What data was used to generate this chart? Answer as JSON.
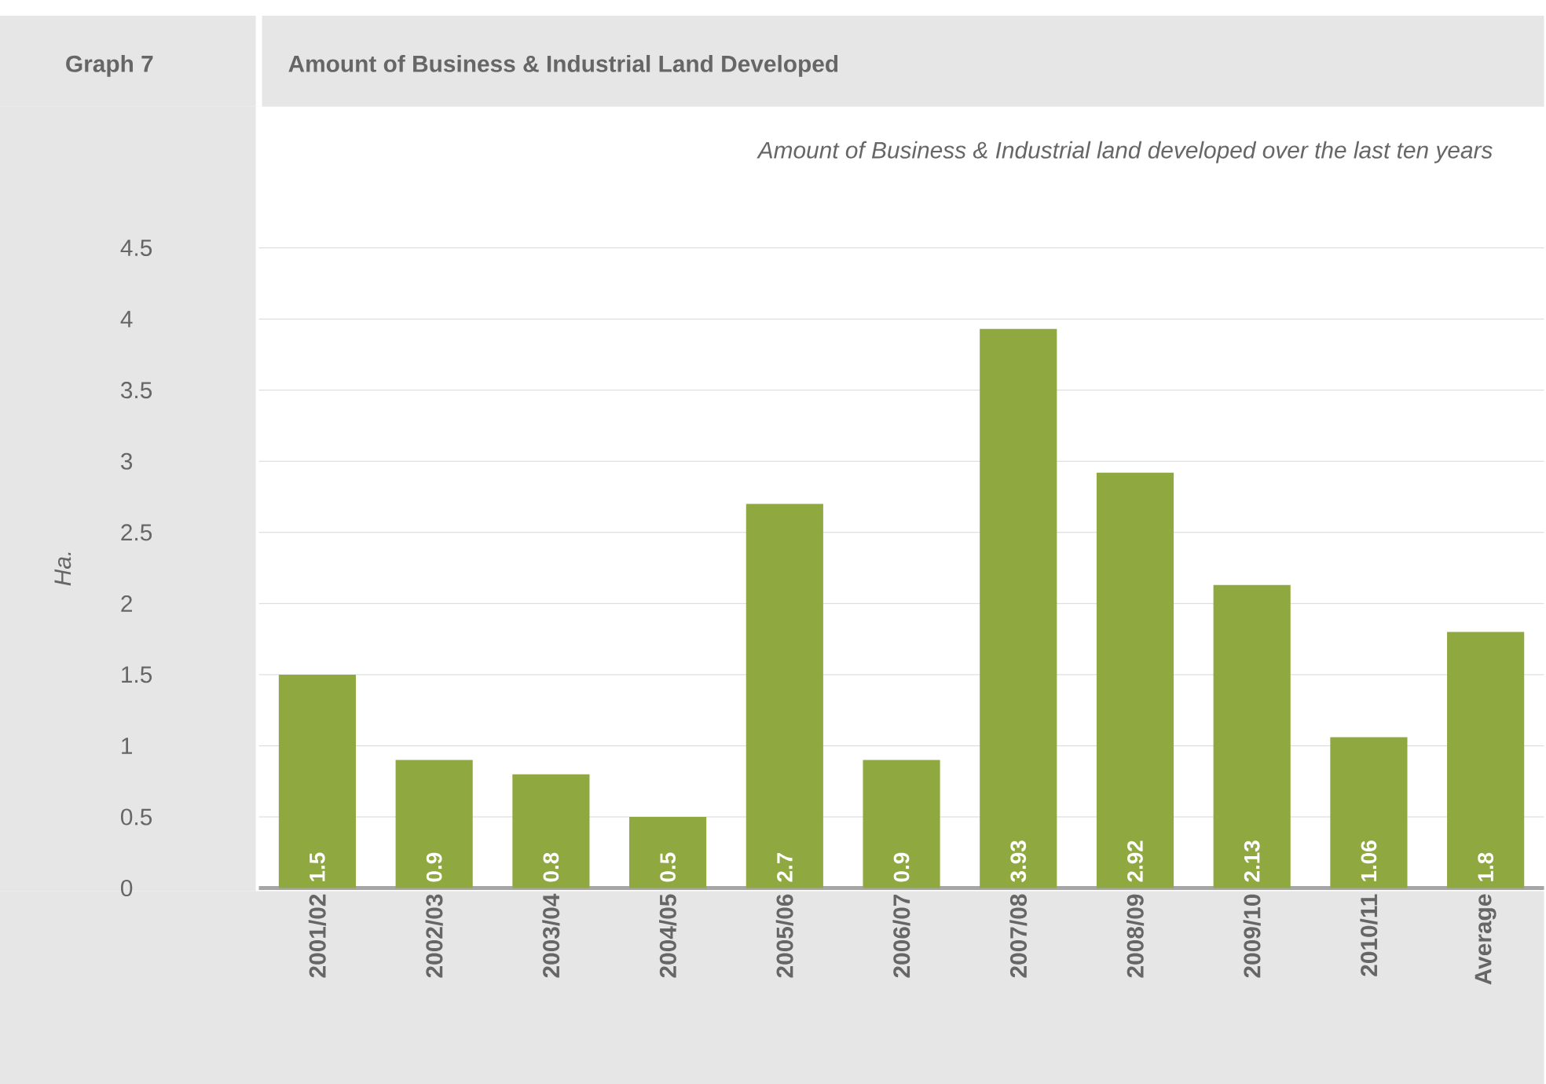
{
  "chart_data": {
    "type": "bar",
    "title": "Amount of Business & Industrial Land Developed",
    "subtitle": "Amount of Business & Industrial land developed over the last ten years",
    "ylabel": "Ha.",
    "annotations": [
      "Graph 7"
    ],
    "categories": [
      "2001/02",
      "2002/03",
      "2003/04",
      "2004/05",
      "2005/06",
      "2006/07",
      "2007/08",
      "2008/09",
      "2009/10",
      "2010/11",
      "Average"
    ],
    "values": [
      1.5,
      0.9,
      0.8,
      0.5,
      2.7,
      0.9,
      3.93,
      2.92,
      2.13,
      1.06,
      1.8
    ],
    "color": "#8fa83f",
    "ylim": [
      0,
      4.5
    ],
    "yticks": [
      0,
      0.5,
      1,
      1.5,
      2,
      2.5,
      3,
      3.5,
      4,
      4.5
    ],
    "grid": "y",
    "data_labels": true
  }
}
